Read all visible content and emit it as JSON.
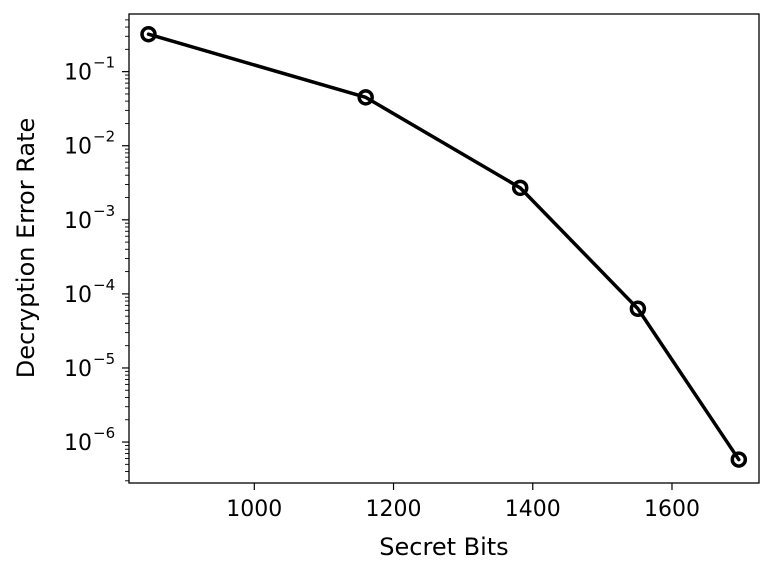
{
  "chart_data": {
    "type": "line",
    "xlabel": "Secret Bits",
    "ylabel": "Decryption Error Rate",
    "xlim": [
      820,
      1725
    ],
    "ylim": [
      2.8e-07,
      0.6
    ],
    "yscale": "log",
    "xticks": [
      1000,
      1200,
      1400,
      1600
    ],
    "yticks": [
      {
        "base": "10",
        "exp": "−1",
        "value": 0.1
      },
      {
        "base": "10",
        "exp": "−2",
        "value": 0.01
      },
      {
        "base": "10",
        "exp": "−3",
        "value": 0.001
      },
      {
        "base": "10",
        "exp": "−4",
        "value": 0.0001
      },
      {
        "base": "10",
        "exp": "−5",
        "value": 1e-05
      },
      {
        "base": "10",
        "exp": "−6",
        "value": 1e-06
      }
    ],
    "grid": false,
    "line_color": "#000000",
    "marker": "circle-open",
    "series": [
      {
        "x": [
          848,
          1160,
          1382,
          1551,
          1696
        ],
        "y": [
          0.32,
          0.045,
          0.0027,
          6.3e-05,
          5.8e-07
        ]
      }
    ]
  }
}
